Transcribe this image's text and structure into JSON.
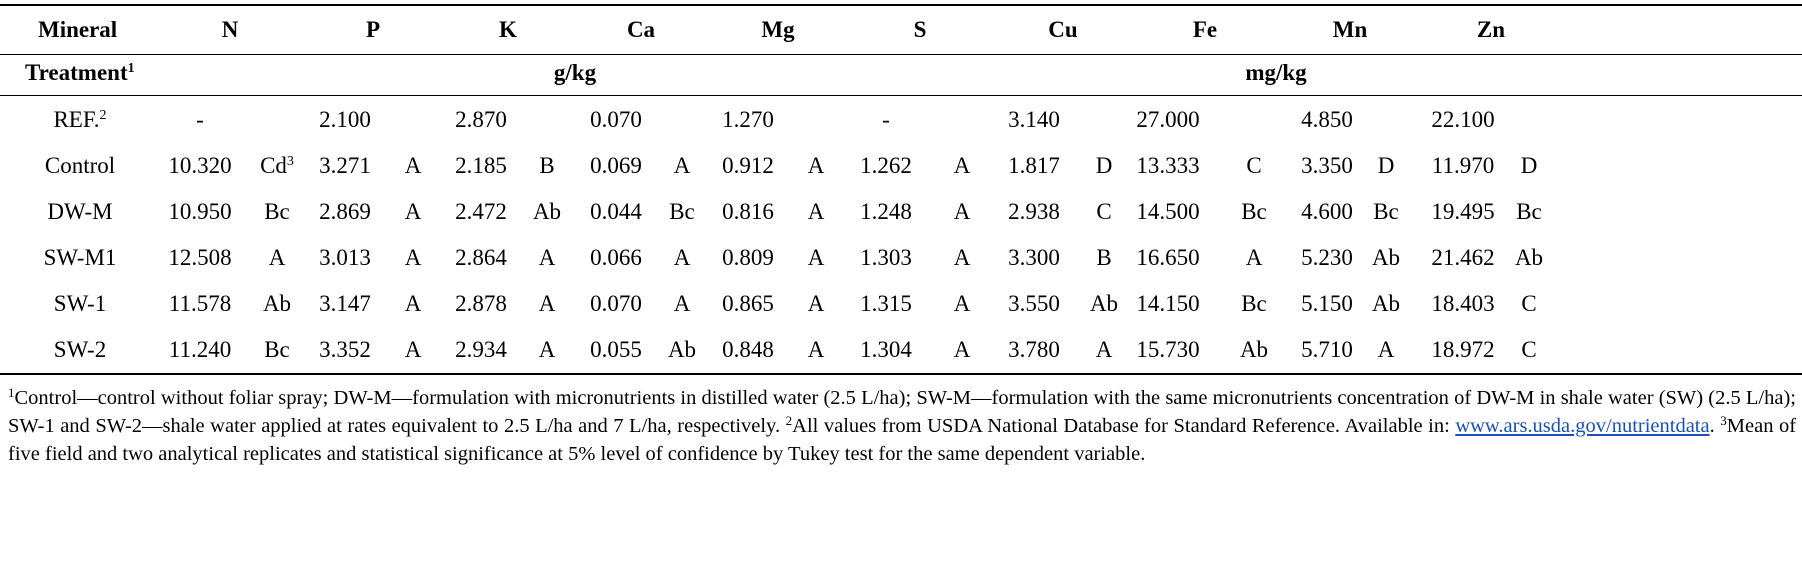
{
  "header": {
    "mineral_label": "Mineral",
    "minerals": [
      "N",
      "P",
      "K",
      "Ca",
      "Mg",
      "S",
      "Cu",
      "Fe",
      "Mn",
      "Zn"
    ],
    "treatment_label": "Treatment",
    "treatment_sup": "1",
    "unit_macro": "g/kg",
    "unit_micro": "mg/kg"
  },
  "rows": [
    {
      "name": "REF.",
      "sup": "2",
      "cells": [
        [
          "-",
          ""
        ],
        [
          "2.100",
          ""
        ],
        [
          "2.870",
          ""
        ],
        [
          "0.070",
          ""
        ],
        [
          "1.270",
          ""
        ],
        [
          "-",
          ""
        ],
        [
          "3.140",
          ""
        ],
        [
          "27.000",
          ""
        ],
        [
          "4.850",
          ""
        ],
        [
          "22.100",
          ""
        ]
      ]
    },
    {
      "name": "Control",
      "sup": "",
      "cells": [
        [
          "10.320",
          "Cd"
        ],
        [
          "3.271",
          "A"
        ],
        [
          "2.185",
          "B"
        ],
        [
          "0.069",
          "A"
        ],
        [
          "0.912",
          "A"
        ],
        [
          "1.262",
          "A"
        ],
        [
          "1.817",
          "D"
        ],
        [
          "13.333",
          "C"
        ],
        [
          "3.350",
          "D"
        ],
        [
          "11.970",
          "D"
        ]
      ]
    },
    {
      "name": "DW-M",
      "sup": "",
      "cells": [
        [
          "10.950",
          "Bc"
        ],
        [
          "2.869",
          "A"
        ],
        [
          "2.472",
          "Ab"
        ],
        [
          "0.044",
          "Bc"
        ],
        [
          "0.816",
          "A"
        ],
        [
          "1.248",
          "A"
        ],
        [
          "2.938",
          "C"
        ],
        [
          "14.500",
          "Bc"
        ],
        [
          "4.600",
          "Bc"
        ],
        [
          "19.495",
          "Bc"
        ]
      ]
    },
    {
      "name": "SW-M1",
      "sup": "",
      "cells": [
        [
          "12.508",
          "A"
        ],
        [
          "3.013",
          "A"
        ],
        [
          "2.864",
          "A"
        ],
        [
          "0.066",
          "A"
        ],
        [
          "0.809",
          "A"
        ],
        [
          "1.303",
          "A"
        ],
        [
          "3.300",
          "B"
        ],
        [
          "16.650",
          "A"
        ],
        [
          "5.230",
          "Ab"
        ],
        [
          "21.462",
          "Ab"
        ]
      ]
    },
    {
      "name": "SW-1",
      "sup": "",
      "cells": [
        [
          "11.578",
          "Ab"
        ],
        [
          "3.147",
          "A"
        ],
        [
          "2.878",
          "A"
        ],
        [
          "0.070",
          "A"
        ],
        [
          "0.865",
          "A"
        ],
        [
          "1.315",
          "A"
        ],
        [
          "3.550",
          "Ab"
        ],
        [
          "14.150",
          "Bc"
        ],
        [
          "5.150",
          "Ab"
        ],
        [
          "18.403",
          "C"
        ]
      ]
    },
    {
      "name": "SW-2",
      "sup": "",
      "cells": [
        [
          "11.240",
          "Bc"
        ],
        [
          "3.352",
          "A"
        ],
        [
          "2.934",
          "A"
        ],
        [
          "0.055",
          "Ab"
        ],
        [
          "0.848",
          "A"
        ],
        [
          "1.304",
          "A"
        ],
        [
          "3.780",
          "A"
        ],
        [
          "15.730",
          "Ab"
        ],
        [
          "5.710",
          "A"
        ],
        [
          "18.972",
          "C"
        ]
      ]
    }
  ],
  "control_n_letter_sup": "3",
  "footnote": {
    "sup1": "1",
    "text1": "Control—control without foliar spray; DW-M—formulation with micronutrients in distilled water (2.5 L/ha); SW-M—formulation with the same micronutrients concentration of DW-M in shale water (SW) (2.5 L/ha); SW-1 and SW-2—shale water applied at rates equivalent to 2.5 L/ha and 7 L/ha, respectively.",
    "sup2": "2",
    "text2": "All values from USDA National Database for Standard Reference. Available in:",
    "link": "www.ars.usda.gov/nutrientdata",
    "text2b": ".",
    "sup3": "3",
    "text3": "Mean of five field and two analytical replicates and statistical significance at 5% level of confidence by Tukey test for the same dependent variable."
  }
}
